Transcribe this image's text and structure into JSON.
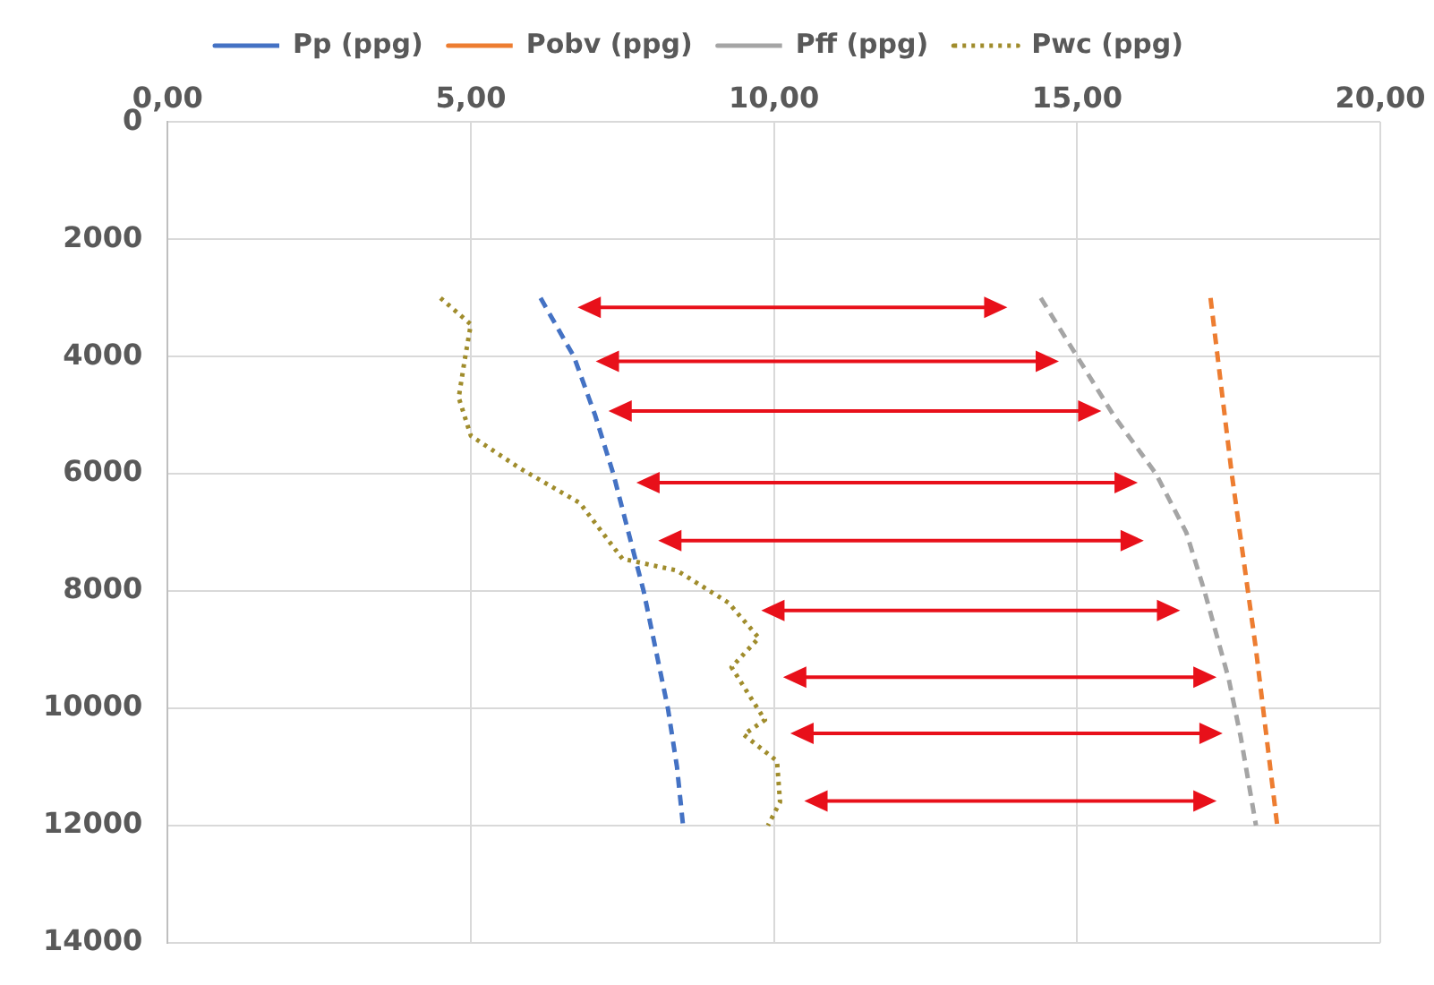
{
  "chart_data": {
    "type": "line",
    "series": [
      {
        "name": "Pp (ppg)",
        "color": "#4472c4",
        "line_style": "dashed",
        "x": [
          6.15,
          6.7,
          7.05,
          7.35,
          7.6,
          7.85,
          8.05,
          8.25,
          8.4,
          8.5
        ],
        "values": [
          3000,
          4000,
          5000,
          6000,
          7000,
          8000,
          9000,
          10000,
          11000,
          12000
        ]
      },
      {
        "name": "Pobv (ppg)",
        "color": "#ed7d31",
        "line_style": "dashed",
        "x": [
          17.2,
          17.55,
          17.95,
          18.3
        ],
        "values": [
          3000,
          6000,
          9000,
          12000
        ]
      },
      {
        "name": "Pff (ppg)",
        "color": "#a5a5a5",
        "line_style": "dashed",
        "x": [
          14.4,
          15.0,
          15.6,
          16.3,
          16.8,
          17.1,
          17.5,
          17.7,
          17.95
        ],
        "values": [
          3000,
          4000,
          5000,
          6000,
          7000,
          8000,
          9500,
          10500,
          12000
        ]
      },
      {
        "name": "Pwc (ppg)",
        "color": "#a08c2c",
        "line_style": "dotted",
        "x": [
          4.5,
          5.0,
          4.9,
          4.8,
          5.0,
          5.8,
          6.8,
          7.5,
          8.4,
          9.25,
          9.75,
          9.3,
          9.85,
          9.5,
          10.05,
          10.1,
          9.9
        ],
        "values": [
          3000,
          3450,
          4050,
          4700,
          5350,
          5900,
          6500,
          7450,
          7650,
          8200,
          8800,
          9300,
          10200,
          10450,
          10900,
          11600,
          12000
        ]
      }
    ],
    "xlim": [
      0,
      20
    ],
    "xticks": [
      {
        "value": 0,
        "label": "0,00"
      },
      {
        "value": 5,
        "label": "5,00"
      },
      {
        "value": 10,
        "label": "10,00"
      },
      {
        "value": 15,
        "label": "15,00"
      },
      {
        "value": 20,
        "label": "20,00"
      }
    ],
    "ylim": [
      14000,
      0
    ],
    "yticks": [
      0,
      2000,
      4000,
      6000,
      8000,
      10000,
      12000,
      14000
    ],
    "grid": true,
    "legend": "top",
    "marker": "none"
  }
}
